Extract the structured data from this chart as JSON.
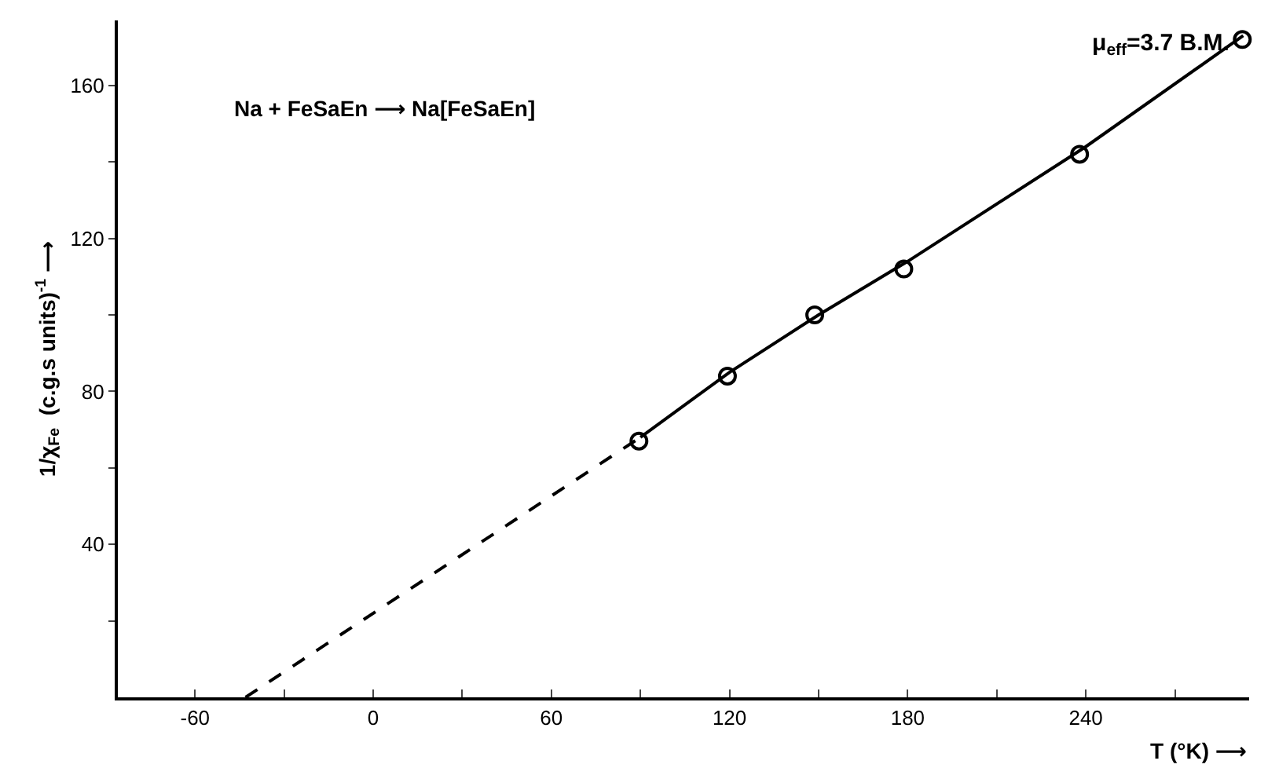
{
  "chart_data": {
    "type": "scatter",
    "xlabel": "T (°K) ⟶",
    "ylabel": "1/χ$_{Fe}$  (c.g.s units)$^{-1}$ ⟶",
    "annotations": [
      "Na + FeSaEn ⟶ Na[FeSaEn]",
      "μ$_{eff}$=3.7 B.M."
    ],
    "series": [
      {
        "type": "scatter",
        "color": "#000000",
        "x": [
          89.5,
          119.3,
          148.7,
          178.7,
          237.9,
          292.7
        ],
        "values": [
          67,
          84,
          100,
          112,
          142,
          172
        ],
        "marker": "circle"
      },
      {
        "type": "line",
        "color": "#000000",
        "x": [
          90,
          120,
          150,
          180,
          240,
          293
        ],
        "values": [
          68,
          85,
          100,
          114,
          144,
          173
        ],
        "line_style": "solid"
      },
      {
        "type": "line",
        "color": "#000000",
        "x": [
          -43,
          90
        ],
        "values": [
          0,
          68
        ],
        "line_style": "dashed"
      }
    ],
    "xlim": [
      -86,
      295
    ],
    "ylim": [
      0,
      177
    ],
    "xticks": [
      {
        "value": -60,
        "label": "-60"
      },
      {
        "value": -30,
        "label": null
      },
      0,
      {
        "value": 30,
        "label": null
      },
      60,
      {
        "value": 90,
        "label": null
      },
      120,
      {
        "value": 150,
        "label": null
      },
      180,
      {
        "value": 210,
        "label": null
      },
      240,
      {
        "value": 270,
        "label": null
      }
    ],
    "yticks": [
      {
        "value": 20,
        "label": null
      },
      40,
      {
        "value": 60,
        "label": null
      },
      80,
      {
        "value": 100,
        "label": null
      },
      120,
      {
        "value": 140,
        "label": null
      },
      160
    ],
    "grid": false
  }
}
